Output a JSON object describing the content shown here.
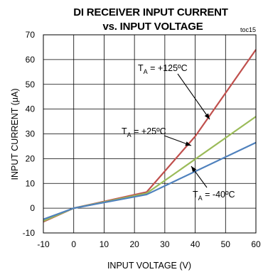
{
  "chart_data": {
    "type": "line",
    "title": "DI RECEIVER INPUT CURRENT",
    "subtitle": "vs. INPUT VOLTAGE",
    "code": "toc15",
    "xlabel": "INPUT VOLTAGE (V)",
    "ylabel": "INPUT CURRENT (μA)",
    "xlim": [
      -10,
      60
    ],
    "ylim": [
      -10,
      70
    ],
    "xticks": [
      -10,
      0,
      10,
      20,
      30,
      40,
      50,
      60
    ],
    "yticks": [
      -10,
      0,
      10,
      20,
      30,
      40,
      50,
      60,
      70
    ],
    "grid": true,
    "series": [
      {
        "name": "T_A = +125ºC",
        "color": "#c0504d",
        "x": [
          -10,
          0,
          24,
          40,
          60
        ],
        "y": [
          -5.5,
          0,
          6.5,
          29,
          64
        ]
      },
      {
        "name": "T_A = +25ºC",
        "color": "#9bbb59",
        "x": [
          -10,
          0,
          24,
          60
        ],
        "y": [
          -5.2,
          0,
          6,
          37
        ]
      },
      {
        "name": "T_A = -40ºC",
        "color": "#4f81bd",
        "x": [
          -10,
          0,
          24,
          60
        ],
        "y": [
          -4.5,
          0,
          5.5,
          26.5
        ]
      }
    ],
    "annotations": [
      {
        "main": "T",
        "sub": "A",
        "rest": " = +125ºC"
      },
      {
        "main": "T",
        "sub": "A",
        "rest": " = +25ºC"
      },
      {
        "main": "T",
        "sub": "A",
        "rest": " = -40ºC"
      }
    ]
  }
}
